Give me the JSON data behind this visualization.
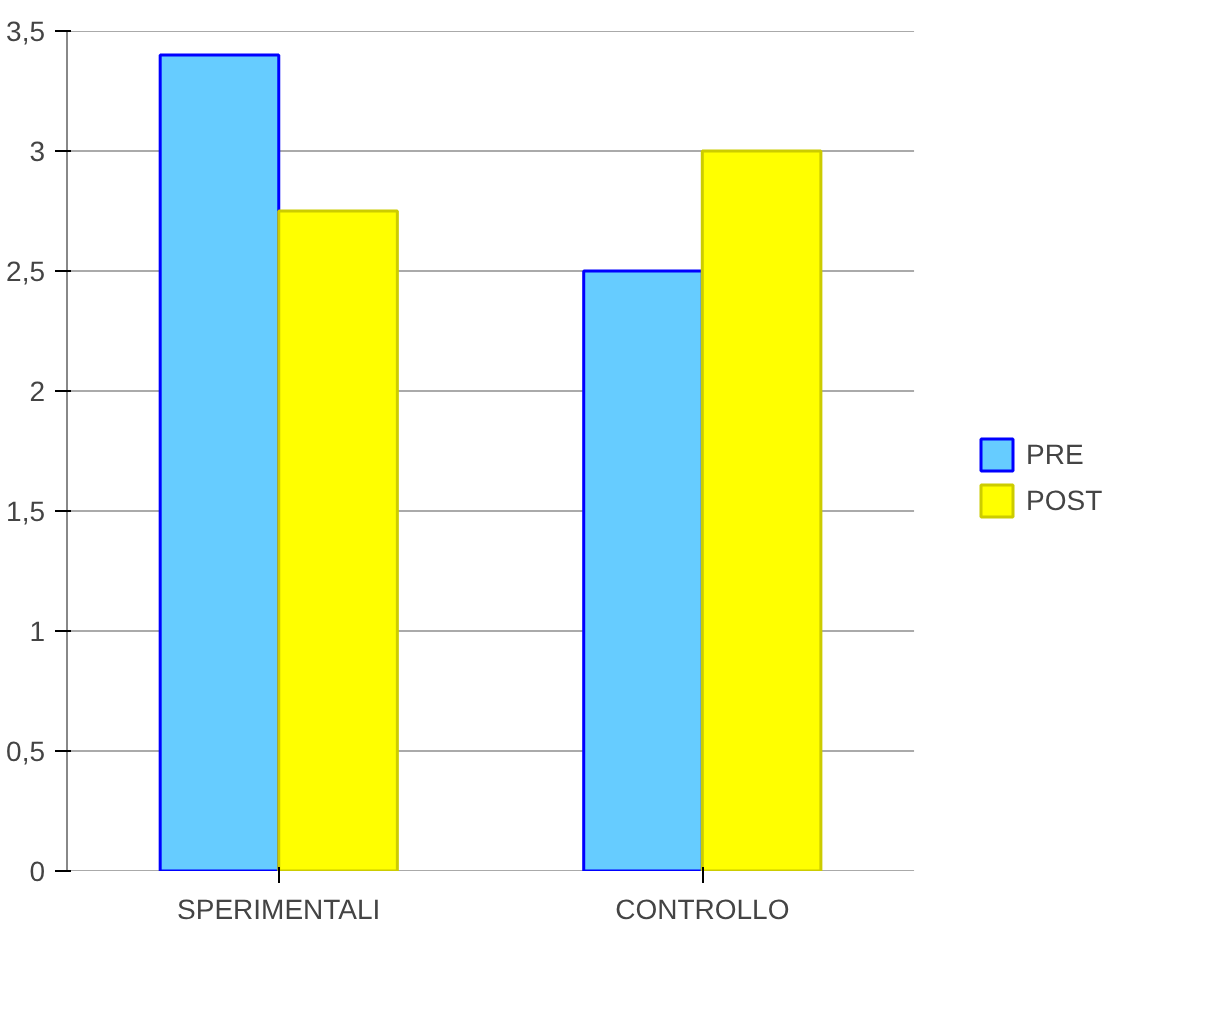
{
  "chart_data": {
    "type": "bar",
    "categories": [
      "SPERIMENTALI",
      "CONTROLLO"
    ],
    "series": [
      {
        "name": "PRE",
        "color": "#66ccff",
        "values": [
          3.4,
          2.5
        ]
      },
      {
        "name": "POST",
        "color": "#ffff00",
        "values": [
          2.75,
          3.0
        ]
      }
    ],
    "ylim": [
      0,
      3.5
    ],
    "yticks": [
      {
        "value": 0,
        "label": "0"
      },
      {
        "value": 0.5,
        "label": "0,5"
      },
      {
        "value": 1,
        "label": "1"
      },
      {
        "value": 1.5,
        "label": "1,5"
      },
      {
        "value": 2,
        "label": "2"
      },
      {
        "value": 2.5,
        "label": "2,5"
      },
      {
        "value": 3,
        "label": "3"
      },
      {
        "value": 3.5,
        "label": "3,5"
      }
    ],
    "grid": "y",
    "legend": "right"
  }
}
